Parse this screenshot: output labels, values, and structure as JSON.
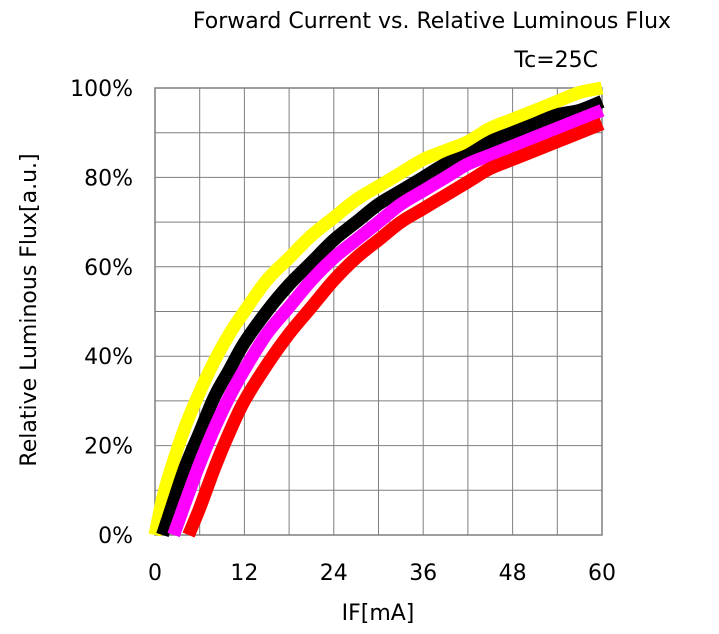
{
  "chart_data": {
    "type": "line",
    "title": "Forward Current vs. Relative Luminous Flux",
    "subtitle": "Tc=25C",
    "xlabel": "IF[mA]",
    "ylabel": "Relative Luminous Flux[a.u.]",
    "xlim": [
      0,
      60
    ],
    "ylim": [
      0,
      100
    ],
    "x_ticks": [
      "0",
      "12",
      "24",
      "36",
      "48",
      "60"
    ],
    "y_ticks": [
      "0%",
      "20%",
      "40%",
      "60%",
      "80%",
      "100%"
    ],
    "grid": true,
    "legend": "none",
    "series": [
      {
        "color": "#ffff00",
        "x": [
          0,
          1,
          2,
          4,
          6,
          8,
          10,
          12,
          15,
          18,
          21,
          24,
          27,
          30,
          33,
          36,
          39,
          42,
          45,
          48,
          51,
          54,
          57,
          60
        ],
        "y": [
          0,
          8,
          14,
          24,
          32,
          39,
          45,
          50,
          57,
          62,
          67,
          71,
          75,
          78,
          81,
          84,
          86,
          88,
          91,
          93,
          95,
          97,
          99,
          100
        ]
      },
      {
        "color": "#000000",
        "x": [
          1,
          2,
          4,
          6,
          8,
          10,
          12,
          15,
          18,
          21,
          24,
          27,
          30,
          33,
          36,
          39,
          42,
          45,
          48,
          51,
          54,
          57,
          60
        ],
        "y": [
          0,
          5,
          15,
          23,
          31,
          37,
          43,
          50,
          56,
          61,
          66,
          70,
          74,
          77,
          80,
          83,
          85,
          88,
          90,
          92,
          94,
          95,
          97
        ]
      },
      {
        "color": "#ff00ff",
        "x": [
          2.5,
          4,
          6,
          8,
          10,
          12,
          15,
          18,
          21,
          24,
          27,
          30,
          33,
          36,
          39,
          42,
          45,
          48,
          51,
          54,
          57,
          60
        ],
        "y": [
          0,
          7,
          16,
          24,
          31,
          37,
          45,
          51,
          57,
          62,
          66,
          70,
          74,
          77,
          80,
          83,
          85,
          87,
          89,
          91,
          93,
          95
        ]
      },
      {
        "color": "#ff0000",
        "x": [
          4.5,
          6,
          8,
          10,
          12,
          15,
          18,
          21,
          24,
          27,
          30,
          33,
          36,
          39,
          42,
          45,
          48,
          51,
          54,
          57,
          60
        ],
        "y": [
          0,
          6,
          15,
          23,
          30,
          38,
          45,
          51,
          57,
          62,
          66,
          70,
          73,
          76,
          79,
          82,
          84,
          86,
          88,
          90,
          92
        ]
      }
    ]
  }
}
